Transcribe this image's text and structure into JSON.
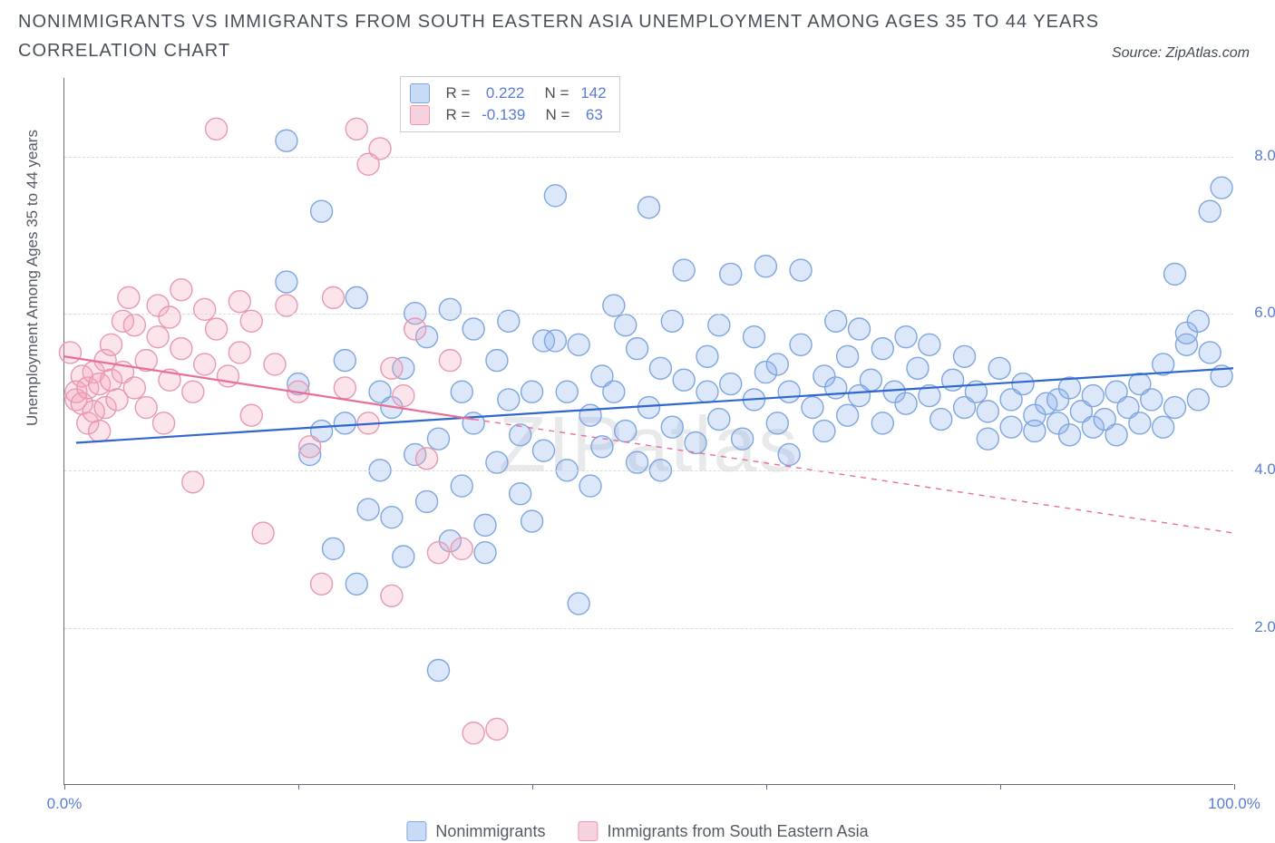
{
  "title": "NONIMMIGRANTS VS IMMIGRANTS FROM SOUTH EASTERN ASIA UNEMPLOYMENT AMONG AGES 35 TO 44 YEARS CORRELATION CHART",
  "source_label": "Source: ZipAtlas.com",
  "ylabel": "Unemployment Among Ages 35 to 44 years",
  "watermark": "ZIPatlas",
  "chart": {
    "type": "scatter",
    "xlim": [
      0,
      100
    ],
    "ylim": [
      0,
      9
    ],
    "xticks": [
      0,
      20,
      40,
      60,
      80,
      100
    ],
    "xtick_labels": [
      "0.0%",
      "",
      "",
      "",
      "",
      "100.0%"
    ],
    "ygrid": [
      2,
      4,
      6,
      8
    ],
    "ytick_labels": [
      "2.0%",
      "4.0%",
      "6.0%",
      "8.0%"
    ],
    "grid_color": "#d9dbdf",
    "axis_color": "#666c78",
    "tick_label_color": "#5b7bd5",
    "marker_radius": 12,
    "marker_stroke_width": 1.4,
    "trend_line_width": 2.2,
    "series": [
      {
        "name": "Nonimmigrants",
        "fill": "rgba(140,175,235,0.30)",
        "stroke": "#7ea6e0",
        "line_color": "#2f66d0",
        "swatch_fill": "#c9daf4",
        "swatch_border": "#7ea6e0",
        "R": "0.222",
        "N": "142",
        "trend": {
          "x1": 1,
          "y1": 4.35,
          "x2": 100,
          "y2": 5.3,
          "dash": "none"
        },
        "points": [
          [
            19,
            8.2
          ],
          [
            19,
            6.4
          ],
          [
            20,
            5.1
          ],
          [
            21,
            4.2
          ],
          [
            22,
            4.5
          ],
          [
            22,
            7.3
          ],
          [
            23,
            3.0
          ],
          [
            24,
            5.4
          ],
          [
            24,
            4.6
          ],
          [
            25,
            6.2
          ],
          [
            25,
            2.55
          ],
          [
            26,
            3.5
          ],
          [
            27,
            5.0
          ],
          [
            27,
            4.0
          ],
          [
            28,
            4.8
          ],
          [
            28,
            3.4
          ],
          [
            29,
            5.3
          ],
          [
            29,
            2.9
          ],
          [
            30,
            4.2
          ],
          [
            30,
            6.0
          ],
          [
            31,
            5.7
          ],
          [
            31,
            3.6
          ],
          [
            32,
            1.45
          ],
          [
            32,
            4.4
          ],
          [
            33,
            3.1
          ],
          [
            33,
            6.05
          ],
          [
            34,
            5.0
          ],
          [
            34,
            3.8
          ],
          [
            35,
            4.6
          ],
          [
            35,
            5.8
          ],
          [
            36,
            3.3
          ],
          [
            36,
            2.95
          ],
          [
            37,
            5.4
          ],
          [
            37,
            4.1
          ],
          [
            38,
            4.9
          ],
          [
            38,
            5.9
          ],
          [
            39,
            3.7
          ],
          [
            39,
            4.45
          ],
          [
            40,
            5.0
          ],
          [
            40,
            3.35
          ],
          [
            41,
            5.65
          ],
          [
            41,
            4.25
          ],
          [
            42,
            5.65
          ],
          [
            42,
            7.5
          ],
          [
            43,
            5.0
          ],
          [
            43,
            4.0
          ],
          [
            44,
            2.3
          ],
          [
            44,
            5.6
          ],
          [
            45,
            4.7
          ],
          [
            45,
            3.8
          ],
          [
            46,
            5.2
          ],
          [
            46,
            4.3
          ],
          [
            47,
            6.1
          ],
          [
            47,
            5.0
          ],
          [
            48,
            4.5
          ],
          [
            48,
            5.85
          ],
          [
            49,
            4.1
          ],
          [
            49,
            5.55
          ],
          [
            50,
            7.35
          ],
          [
            50,
            4.8
          ],
          [
            51,
            5.3
          ],
          [
            51,
            4.0
          ],
          [
            52,
            5.9
          ],
          [
            52,
            4.55
          ],
          [
            53,
            5.15
          ],
          [
            53,
            6.55
          ],
          [
            54,
            4.35
          ],
          [
            55,
            5.45
          ],
          [
            55,
            5.0
          ],
          [
            56,
            4.65
          ],
          [
            56,
            5.85
          ],
          [
            57,
            5.1
          ],
          [
            57,
            6.5
          ],
          [
            58,
            4.4
          ],
          [
            59,
            5.7
          ],
          [
            59,
            4.9
          ],
          [
            60,
            5.25
          ],
          [
            60,
            6.6
          ],
          [
            61,
            4.6
          ],
          [
            61,
            5.35
          ],
          [
            62,
            5.0
          ],
          [
            62,
            4.2
          ],
          [
            63,
            5.6
          ],
          [
            63,
            6.55
          ],
          [
            64,
            4.8
          ],
          [
            65,
            5.2
          ],
          [
            65,
            4.5
          ],
          [
            66,
            5.9
          ],
          [
            66,
            5.05
          ],
          [
            67,
            4.7
          ],
          [
            67,
            5.45
          ],
          [
            68,
            5.8
          ],
          [
            68,
            4.95
          ],
          [
            69,
            5.15
          ],
          [
            70,
            4.6
          ],
          [
            70,
            5.55
          ],
          [
            71,
            5.0
          ],
          [
            72,
            5.7
          ],
          [
            72,
            4.85
          ],
          [
            73,
            5.3
          ],
          [
            74,
            4.95
          ],
          [
            74,
            5.6
          ],
          [
            75,
            4.65
          ],
          [
            76,
            5.15
          ],
          [
            77,
            4.8
          ],
          [
            77,
            5.45
          ],
          [
            78,
            5.0
          ],
          [
            79,
            4.4
          ],
          [
            79,
            4.75
          ],
          [
            80,
            5.3
          ],
          [
            81,
            4.9
          ],
          [
            81,
            4.55
          ],
          [
            82,
            5.1
          ],
          [
            83,
            4.7
          ],
          [
            83,
            4.5
          ],
          [
            84,
            4.85
          ],
          [
            85,
            4.6
          ],
          [
            85,
            4.9
          ],
          [
            86,
            5.05
          ],
          [
            86,
            4.45
          ],
          [
            87,
            4.75
          ],
          [
            88,
            4.55
          ],
          [
            88,
            4.95
          ],
          [
            89,
            4.65
          ],
          [
            90,
            5.0
          ],
          [
            90,
            4.45
          ],
          [
            91,
            4.8
          ],
          [
            92,
            5.1
          ],
          [
            92,
            4.6
          ],
          [
            93,
            4.9
          ],
          [
            94,
            5.35
          ],
          [
            94,
            4.55
          ],
          [
            95,
            6.5
          ],
          [
            95,
            4.8
          ],
          [
            96,
            5.6
          ],
          [
            96,
            5.75
          ],
          [
            97,
            5.9
          ],
          [
            97,
            4.9
          ],
          [
            98,
            5.5
          ],
          [
            98,
            7.3
          ],
          [
            99,
            5.2
          ],
          [
            99,
            7.6
          ]
        ]
      },
      {
        "name": "Immigrants from South Eastern Asia",
        "fill": "rgba(245,165,190,0.30)",
        "stroke": "#e998b2",
        "line_color": "#e86f97",
        "swatch_fill": "#f6d2de",
        "swatch_border": "#e998b2",
        "R": "-0.139",
        "N": "63",
        "trend_solid": {
          "x1": 0,
          "y1": 5.45,
          "x2": 35,
          "y2": 4.65
        },
        "trend_dash": {
          "x1": 35,
          "y1": 4.65,
          "x2": 100,
          "y2": 3.2
        },
        "points": [
          [
            0.5,
            5.5
          ],
          [
            1,
            4.9
          ],
          [
            1,
            5.0
          ],
          [
            1.5,
            5.2
          ],
          [
            1.5,
            4.85
          ],
          [
            2,
            4.6
          ],
          [
            2,
            5.05
          ],
          [
            2.5,
            5.25
          ],
          [
            2.5,
            4.75
          ],
          [
            3,
            4.5
          ],
          [
            3,
            5.1
          ],
          [
            3.5,
            5.4
          ],
          [
            3.5,
            4.8
          ],
          [
            4,
            5.15
          ],
          [
            4,
            5.6
          ],
          [
            4.5,
            4.9
          ],
          [
            5,
            5.9
          ],
          [
            5,
            5.25
          ],
          [
            5.5,
            6.2
          ],
          [
            6,
            5.05
          ],
          [
            6,
            5.85
          ],
          [
            7,
            5.4
          ],
          [
            7,
            4.8
          ],
          [
            8,
            5.7
          ],
          [
            8,
            6.1
          ],
          [
            8.5,
            4.6
          ],
          [
            9,
            5.15
          ],
          [
            9,
            5.95
          ],
          [
            10,
            5.55
          ],
          [
            10,
            6.3
          ],
          [
            11,
            5.0
          ],
          [
            11,
            3.85
          ],
          [
            12,
            6.05
          ],
          [
            12,
            5.35
          ],
          [
            13,
            8.35
          ],
          [
            13,
            5.8
          ],
          [
            14,
            5.2
          ],
          [
            15,
            6.15
          ],
          [
            15,
            5.5
          ],
          [
            16,
            4.7
          ],
          [
            16,
            5.9
          ],
          [
            17,
            3.2
          ],
          [
            18,
            5.35
          ],
          [
            19,
            6.1
          ],
          [
            20,
            5.0
          ],
          [
            21,
            4.3
          ],
          [
            22,
            2.55
          ],
          [
            23,
            6.2
          ],
          [
            24,
            5.05
          ],
          [
            25,
            8.35
          ],
          [
            26,
            7.9
          ],
          [
            26,
            4.6
          ],
          [
            27,
            8.1
          ],
          [
            28,
            5.3
          ],
          [
            28,
            2.4
          ],
          [
            29,
            4.95
          ],
          [
            30,
            5.8
          ],
          [
            31,
            4.15
          ],
          [
            32,
            2.95
          ],
          [
            33,
            5.4
          ],
          [
            34,
            3.0
          ],
          [
            35,
            0.65
          ],
          [
            37,
            0.7
          ]
        ]
      }
    ]
  },
  "stats_legend": {
    "r_label": "R =",
    "n_label": "N ="
  },
  "bottom_legend": [
    "Nonimmigrants",
    "Immigrants from South Eastern Asia"
  ],
  "colors": {
    "text_dark": "#4a4f5a",
    "value_blue": "#5b7bd5"
  },
  "typography": {
    "title_fontsize": 20,
    "axis_label_fontsize": 17,
    "tick_fontsize": 17,
    "legend_fontsize": 17,
    "watermark_fontsize": 86
  }
}
